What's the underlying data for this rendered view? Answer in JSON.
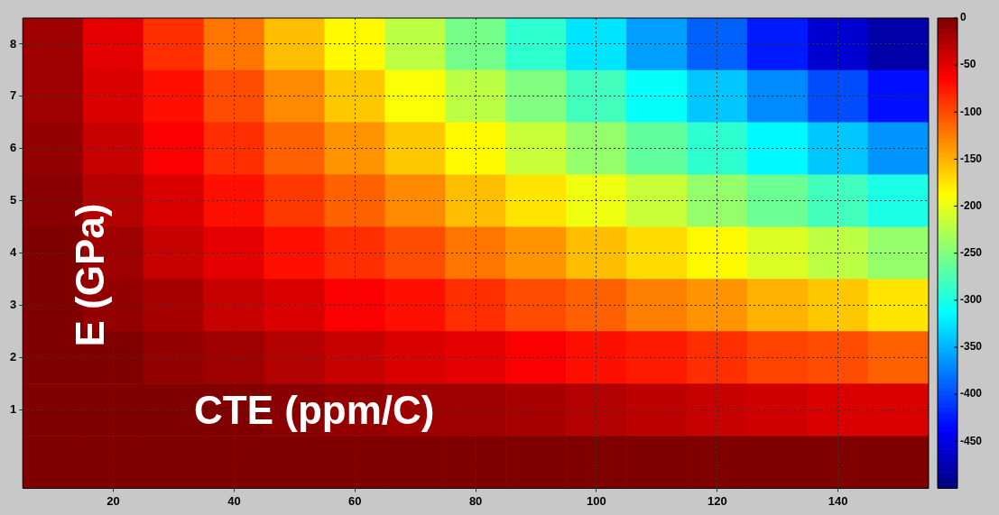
{
  "chart_data": {
    "type": "heatmap",
    "xlabel": "CTE (ppm/C)",
    "ylabel": "E (GPa)",
    "categories": [
      null,
      "20",
      null,
      "40",
      null,
      "60",
      null,
      "80",
      null,
      "100",
      null,
      "120",
      null,
      "140",
      null
    ],
    "y_categories": [
      "8",
      "7",
      "6",
      "5",
      "4",
      "3",
      "2",
      "1",
      null
    ],
    "cells": [
      [
        -15,
        -50,
        -85,
        -120,
        -155,
        -185,
        -220,
        -255,
        -290,
        -325,
        -360,
        -390,
        -425,
        -460,
        -480
      ],
      [
        -15,
        -45,
        -70,
        -100,
        -130,
        -160,
        -190,
        -220,
        -250,
        -280,
        -310,
        -340,
        -370,
        -400,
        -430
      ],
      [
        -10,
        -35,
        -60,
        -85,
        -110,
        -135,
        -160,
        -185,
        -215,
        -240,
        -265,
        -290,
        -315,
        -340,
        -365
      ],
      [
        -5,
        -25,
        -45,
        -70,
        -90,
        -110,
        -130,
        -155,
        -175,
        -195,
        -215,
        -240,
        -260,
        -280,
        -300
      ],
      [
        0,
        -15,
        -35,
        -50,
        -70,
        -85,
        -100,
        -120,
        -135,
        -155,
        -170,
        -185,
        -205,
        -220,
        -240
      ],
      [
        0,
        -10,
        -20,
        -35,
        -45,
        -60,
        -70,
        -85,
        -100,
        -110,
        -125,
        -135,
        -150,
        -160,
        -175
      ],
      [
        0,
        0,
        -10,
        -15,
        -25,
        -35,
        -45,
        -50,
        -60,
        -70,
        -75,
        -85,
        -95,
        -100,
        -110
      ],
      [
        0,
        0,
        0,
        0,
        -5,
        -10,
        -15,
        -15,
        -20,
        -25,
        -30,
        -35,
        -40,
        -45,
        -45
      ],
      [
        0,
        0,
        0,
        0,
        0,
        0,
        0,
        0,
        0,
        0,
        0,
        0,
        0,
        0,
        0
      ]
    ],
    "clim": [
      -500,
      0
    ],
    "cticks": [
      0,
      -50,
      -100,
      -150,
      -200,
      -250,
      -300,
      -350,
      -400,
      -450
    ],
    "grid": true
  }
}
